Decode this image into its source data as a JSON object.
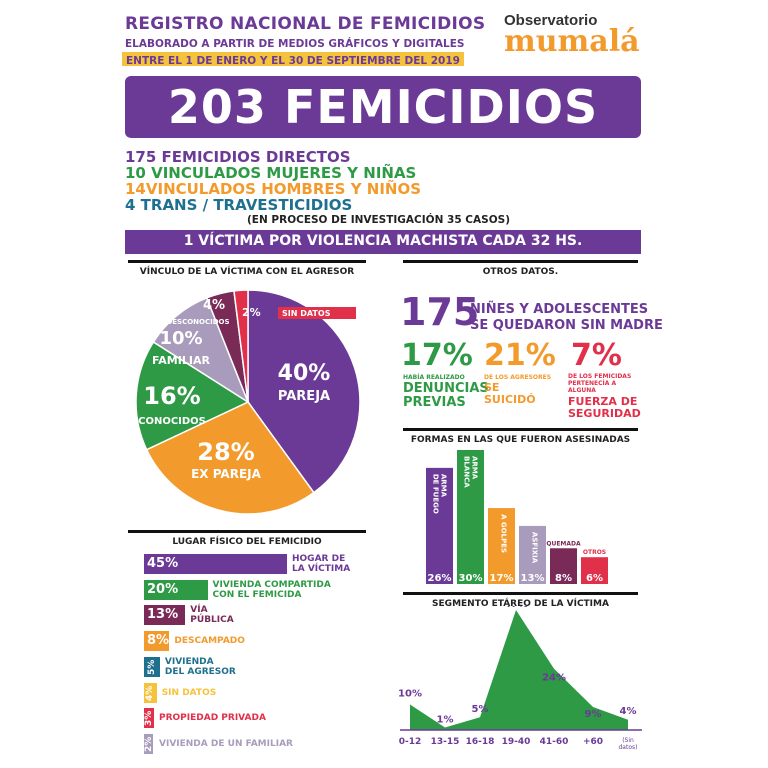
{
  "header": {
    "title": "REGISTRO NACIONAL DE FEMICIDIOS",
    "subtitle1": "ELABORADO A PARTIR DE MEDIOS GRÁFICOS Y DIGITALES",
    "subtitle2": "ENTRE EL 1 DE ENERO Y EL 30 DE SEPTIEMBRE DEL 2019",
    "logo_top": "Observatorio",
    "logo_main": "mumalá"
  },
  "banner": {
    "total": "203 FEMICIDIOS"
  },
  "breakdown": {
    "line1": "175 FEMICIDIOS DIRECTOS",
    "line2": "10 VINCULADOS MUJERES Y NIÑAS",
    "line3": "14VINCULADOS HOMBRES Y NIÑOS",
    "line4": "4 TRANS / TRAVESTICIDIOS",
    "note": "(EN PROCESO DE INVESTIGACIÓN 35 CASOS)"
  },
  "rate_banner": "1 VÍCTIMA POR VIOLENCIA MACHISTA CADA 32 HS.",
  "sections": {
    "vinculo": "VÍNCULO DE LA VÍCTIMA CON EL AGRESOR",
    "otros": "OTROS DATOS.",
    "formas": "FORMAS EN LAS QUE FUERON ASESINADAS",
    "lugar": "LUGAR FÍSICO DEL FEMICIDIO",
    "segmento": "SEGMENTO ETÁREO DE LA VÍCTIMA"
  },
  "otros": {
    "big_number": "175",
    "big_text1": "NIÑES Y ADOLESCENTES",
    "big_text2": "SE QUEDARON SIN MADRE",
    "stat1_pct": "17%",
    "stat1_small": "HABÍA REALIZADO",
    "stat1_big1": "DENUNCIAS",
    "stat1_big2": "PREVIAS",
    "stat2_pct": "21%",
    "stat2_small": "DE LOS AGRESORES",
    "stat2_big1": "SE",
    "stat2_big2": "SUICIDÓ",
    "stat3_pct": "7%",
    "stat3_small1": "DE LOS FEMICIDAS",
    "stat3_small2": "PERTENECÍA A",
    "stat3_small3": "ALGUNA",
    "stat3_big1": "FUERZA DE",
    "stat3_big2": "SEGURIDAD"
  },
  "chart_data": [
    {
      "type": "pie",
      "title": "VÍNCULO DE LA VÍCTIMA CON EL AGRESOR",
      "slices": [
        {
          "name": "PAREJA",
          "value": 40,
          "label": "40%",
          "color": "#6b3a97"
        },
        {
          "name": "EX PAREJA",
          "value": 28,
          "label": "28%",
          "color": "#f39a2c"
        },
        {
          "name": "CONOCIDOS",
          "value": 16,
          "label": "16%",
          "color": "#2e9a45"
        },
        {
          "name": "FAMILIAR",
          "value": 10,
          "label": "10%",
          "color": "#a99bbb"
        },
        {
          "name": "DESCONOCIDOS",
          "value": 4,
          "label": "4%",
          "color": "#7a2a57"
        },
        {
          "name": "SIN DATOS",
          "value": 2,
          "label": "2%",
          "color": "#e0304a"
        }
      ]
    },
    {
      "type": "bar",
      "title": "FORMAS EN LAS QUE FUERON ASESINADAS",
      "categories": [
        "ARMA DE FUEGO",
        "ARMA BLANCA",
        "A GOLPES",
        "ASFIXIA",
        "QUEMADA",
        "OTROS"
      ],
      "values": [
        26,
        30,
        17,
        13,
        8,
        6
      ],
      "labels": [
        "26%",
        "30%",
        "17%",
        "13%",
        "8%",
        "6%"
      ],
      "colors": [
        "#6b3a97",
        "#2e9a45",
        "#f39a2c",
        "#a99bbb",
        "#7a2a57",
        "#e0304a"
      ]
    },
    {
      "type": "bar",
      "orientation": "horizontal",
      "title": "LUGAR FÍSICO DEL FEMICIDIO",
      "categories": [
        "HOGAR DE LA VÍCTIMA",
        "VIVIENDA COMPARTIDA CON EL FEMICIDA",
        "VÍA PÚBLICA",
        "DESCAMPADO",
        "VIVIENDA DEL AGRESOR",
        "SIN DATOS",
        "PROPIEDAD PRIVADA",
        "VIVIENDA DE UN FAMILIAR"
      ],
      "label_lines": [
        [
          "HOGAR DE",
          "LA VÍCTIMA"
        ],
        [
          "VIVIENDA COMPARTIDA",
          "CON EL FEMICIDA"
        ],
        [
          "VÍA",
          "PÚBLICA"
        ],
        [
          "DESCAMPADO"
        ],
        [
          "VIVIENDA",
          "DEL AGRESOR"
        ],
        [
          "SIN DATOS"
        ],
        [
          "PROPIEDAD PRIVADA"
        ],
        [
          "VIVIENDA DE UN FAMILIAR"
        ]
      ],
      "values": [
        45,
        20,
        13,
        8,
        5,
        4,
        3,
        2
      ],
      "labels": [
        "45%",
        "20%",
        "13%",
        "8%",
        "5%",
        "4%",
        "3%",
        "2%"
      ],
      "colors": [
        "#6b3a97",
        "#2e9a45",
        "#7a2a57",
        "#f39a2c",
        "#1f6f8e",
        "#f5c33b",
        "#e0304a",
        "#a99bbb"
      ]
    },
    {
      "type": "area",
      "title": "SEGMENTO ETÁREO DE LA VÍCTIMA",
      "categories": [
        "0-12",
        "13-15",
        "16-18",
        "19-40",
        "41-60",
        "+60",
        "(Sin datos)"
      ],
      "values": [
        10,
        1,
        5,
        47,
        24,
        9,
        4
      ],
      "labels": [
        "10%",
        "1%",
        "5%",
        "47%",
        "24%",
        "9%",
        "4%"
      ],
      "color": "#2e9a45"
    }
  ]
}
